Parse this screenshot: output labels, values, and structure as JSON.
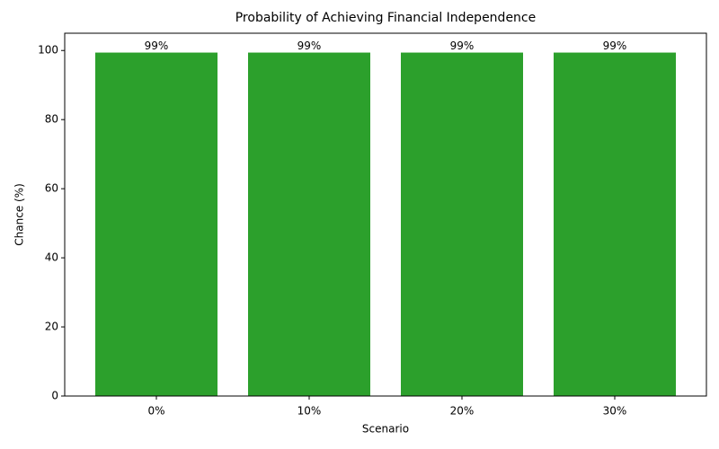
{
  "chart_data": {
    "type": "bar",
    "title": "Probability of Achieving Financial Independence",
    "x_label": "Scenario",
    "y_label": "Chance (%)",
    "categories": [
      "0%",
      "10%",
      "20%",
      "30%"
    ],
    "values": [
      99.4,
      99.4,
      99.4,
      99.4
    ],
    "value_labels": [
      "99%",
      "99%",
      "99%",
      "99%"
    ],
    "color": "#2ca02c",
    "ylim": [
      0,
      105
    ],
    "yticks": [
      0,
      20,
      40,
      60,
      80,
      100
    ],
    "grid": false
  }
}
